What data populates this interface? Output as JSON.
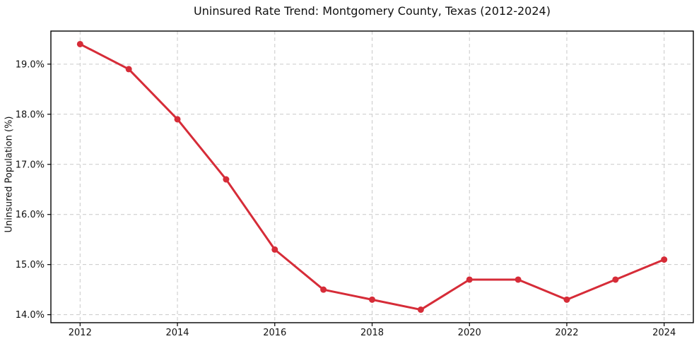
{
  "chart_data": {
    "type": "line",
    "title": "Uninsured Rate Trend: Montgomery County, Texas (2012-2024)",
    "xlabel": "",
    "ylabel": "Uninsured Population (%)",
    "x": [
      2012,
      2013,
      2014,
      2015,
      2016,
      2017,
      2018,
      2019,
      2020,
      2021,
      2022,
      2023,
      2024
    ],
    "values": [
      19.4,
      18.9,
      17.9,
      16.7,
      15.3,
      14.5,
      14.3,
      14.1,
      14.7,
      14.7,
      14.3,
      14.7,
      15.1
    ],
    "xticks": [
      2012,
      2014,
      2016,
      2018,
      2020,
      2022,
      2024
    ],
    "xtick_labels": [
      "2012",
      "2014",
      "2016",
      "2018",
      "2020",
      "2022",
      "2024"
    ],
    "yticks": [
      14.0,
      15.0,
      16.0,
      17.0,
      18.0,
      19.0
    ],
    "ytick_labels": [
      "14.0%",
      "15.0%",
      "16.0%",
      "17.0%",
      "18.0%",
      "19.0%"
    ],
    "xlim": [
      2011.4,
      2024.6
    ],
    "ylim": [
      13.84,
      19.66
    ],
    "grid": true,
    "grid_style": "dashed",
    "legend": false,
    "marker": "circle",
    "line_color": "#d62c38",
    "grid_color": "#c9c9c9",
    "axis_color": "#000000",
    "text_color": "#111111",
    "background_color": "#ffffff"
  }
}
